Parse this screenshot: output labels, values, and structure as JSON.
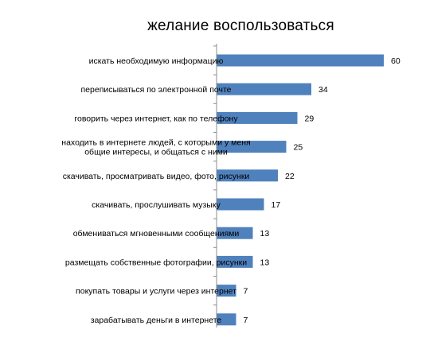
{
  "chart_data": {
    "type": "bar",
    "orientation": "horizontal",
    "title": "желание воспользоваться",
    "categories": [
      [
        "искать необходимую информацию"
      ],
      [
        "переписываться по электронной почте"
      ],
      [
        "говорить через интернет, как по телефону"
      ],
      [
        "находить в интернете людей, с которыми у меня",
        "общие интересы, и общаться с ними"
      ],
      [
        "скачивать, просматривать видео, фото, рисунки"
      ],
      [
        "скачивать, прослушивать музыку"
      ],
      [
        "обмениваться мгновенными сообщениями"
      ],
      [
        "размещать собственные фотографии, рисунки"
      ],
      [
        "покупать товары и услуги через интернет"
      ],
      [
        "зарабатывать деньги в интернете"
      ]
    ],
    "values": [
      60,
      34,
      29,
      25,
      22,
      17,
      13,
      13,
      7,
      7
    ],
    "xlim": [
      0,
      60
    ],
    "grid": false,
    "legend": "none",
    "bar_color": "#4f81bd",
    "axis_color": "#8c8c8c"
  }
}
